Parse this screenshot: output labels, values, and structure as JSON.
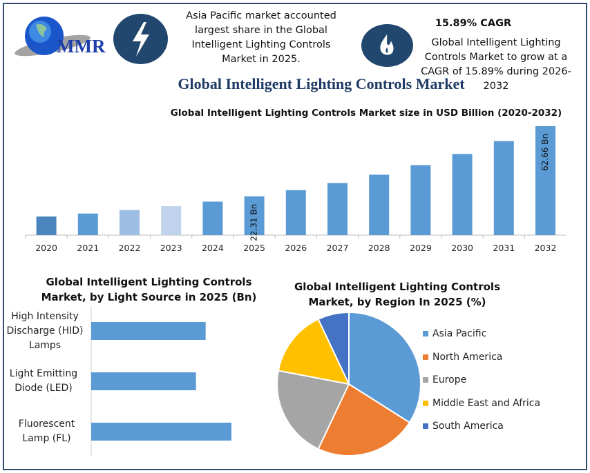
{
  "header": {
    "logo_text": "MMR",
    "bolt_icon": "lightning-bolt-icon",
    "flame_icon": "flame-icon",
    "asia_note": "Asia Pacific market accounted largest share in the Global Intelligent Lighting Controls Market in 2025.",
    "cagr_heading": "15.89% CAGR",
    "cagr_note": "Global Intelligent Lighting Controls Market to grow at a CAGR of 15.89% during 2026-2032",
    "main_title": "Global Intelligent Lighting Controls Market"
  },
  "colors": {
    "frame": "#2d4d6e",
    "icon_circle": "#21476e",
    "bar": "#5b9bd5",
    "title": "#1f3b66"
  },
  "chart_data": [
    {
      "type": "bar",
      "title": "Global Intelligent Lighting Controls Market size in USD Billion (2020-2032)",
      "categories": [
        "2020",
        "2021",
        "2022",
        "2023",
        "2024",
        "2025",
        "2026",
        "2027",
        "2028",
        "2029",
        "2030",
        "2031",
        "2032"
      ],
      "values": [
        10.7,
        12.4,
        14.4,
        16.6,
        19.25,
        22.31,
        25.86,
        29.97,
        34.73,
        40.25,
        46.64,
        54.05,
        62.66
      ],
      "bar_colors": [
        "#4a86bd",
        "#5b9bd5",
        "#9dbde2",
        "#bfd3ec",
        "#5b9bd5",
        "#5b9bd5",
        "#5b9bd5",
        "#5b9bd5",
        "#5b9bd5",
        "#5b9bd5",
        "#5b9bd5",
        "#5b9bd5",
        "#5b9bd5"
      ],
      "data_labels": {
        "2025": "22.31 Bn",
        "2032": "62.66 Bn"
      },
      "ylim": [
        0,
        65
      ],
      "grid": false
    },
    {
      "type": "bar",
      "orientation": "horizontal",
      "title": "Global Intelligent Lighting Controls Market, by Light Source in 2025 (Bn)",
      "categories": [
        "High Intensity Discharge (HID) Lamps",
        "Light Emitting Diode (LED)",
        "Fluorescent Lamp (FL)"
      ],
      "values": [
        7.1,
        6.5,
        8.7
      ],
      "color": "#5b9bd5",
      "grid": false
    },
    {
      "type": "pie",
      "title": "Global Intelligent Lighting Controls Market, by Region In 2025 (%)",
      "labels": [
        "Asia Pacific",
        "North America",
        "Europe",
        "Middle East and Africa",
        "South America"
      ],
      "values": [
        34,
        23,
        21,
        15,
        7
      ],
      "colors": [
        "#5b9bd5",
        "#ed7d31",
        "#a5a5a5",
        "#ffc000",
        "#4472c4"
      ],
      "legend": "right"
    }
  ]
}
